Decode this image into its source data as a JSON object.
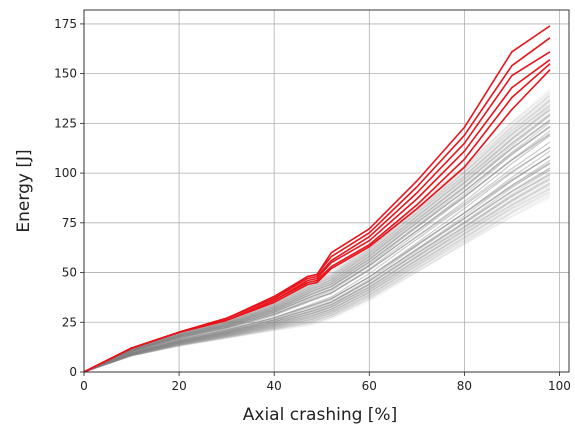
{
  "chart_data": {
    "type": "line",
    "title": "",
    "xlabel": "Axial crashing [%]",
    "ylabel": "Energy [J]",
    "xlim": [
      0,
      102
    ],
    "ylim": [
      0,
      182
    ],
    "xticks": [
      0,
      20,
      40,
      60,
      80,
      100
    ],
    "yticks": [
      0,
      25,
      50,
      75,
      100,
      125,
      150,
      175
    ],
    "grid": true,
    "legend": "none",
    "colors": {
      "background_series": "#808080",
      "highlight_series": "#e8141c",
      "grid": "#b0b0b0"
    },
    "series": [
      {
        "group": "background",
        "x": [
          0,
          10,
          20,
          30,
          40,
          48,
          52,
          60,
          70,
          80,
          90,
          98
        ],
        "min": [
          0,
          8,
          13,
          17,
          21,
          24,
          27,
          36,
          50,
          64,
          78,
          88
        ],
        "max": [
          0,
          12,
          20,
          26,
          35,
          46,
          50,
          64,
          84,
          104,
          126,
          142
        ],
        "center": [
          0,
          11,
          18,
          24,
          31,
          40,
          44,
          55,
          71,
          88,
          106,
          120
        ]
      },
      {
        "group": "highlight",
        "x": [
          0,
          10,
          20,
          30,
          40,
          47,
          49,
          52,
          60,
          70,
          80,
          90,
          98
        ],
        "y": [
          0,
          12,
          20,
          26,
          35,
          44,
          45,
          52,
          63,
          82,
          103,
          132,
          152
        ]
      },
      {
        "group": "highlight",
        "x": [
          0,
          10,
          20,
          30,
          40,
          47,
          49,
          52,
          60,
          70,
          80,
          90,
          98
        ],
        "y": [
          0,
          12,
          20,
          26,
          36,
          45,
          46,
          53,
          64,
          84,
          107,
          138,
          155
        ]
      },
      {
        "group": "highlight",
        "x": [
          0,
          10,
          20,
          30,
          40,
          47,
          49,
          52,
          60,
          70,
          80,
          90,
          98
        ],
        "y": [
          0,
          12,
          20,
          26,
          36,
          46,
          47,
          55,
          66,
          87,
          111,
          143,
          157
        ]
      },
      {
        "group": "highlight",
        "x": [
          0,
          10,
          20,
          30,
          40,
          47,
          49,
          52,
          60,
          70,
          80,
          90,
          98
        ],
        "y": [
          0,
          12,
          20,
          27,
          37,
          47,
          48,
          56,
          68,
          90,
          115,
          149,
          161
        ]
      },
      {
        "group": "highlight",
        "x": [
          0,
          10,
          20,
          30,
          40,
          47,
          49,
          52,
          60,
          70,
          80,
          90,
          98
        ],
        "y": [
          0,
          12,
          20,
          27,
          37,
          48,
          49,
          58,
          70,
          93,
          119,
          154,
          168
        ]
      },
      {
        "group": "highlight",
        "x": [
          0,
          10,
          20,
          30,
          40,
          47,
          49,
          52,
          60,
          70,
          80,
          90,
          98
        ],
        "y": [
          0,
          12,
          20,
          27,
          38,
          48,
          49,
          60,
          72,
          96,
          123,
          161,
          174
        ]
      }
    ]
  }
}
